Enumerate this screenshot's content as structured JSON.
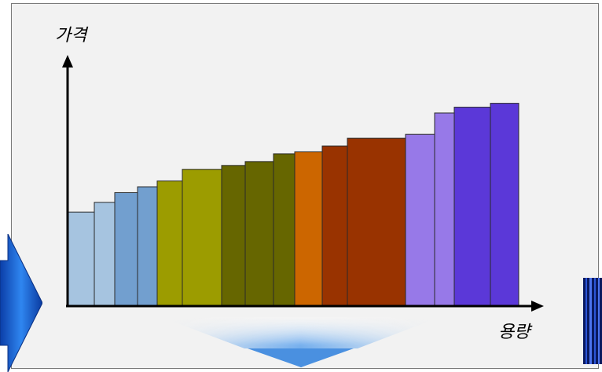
{
  "chart_data": {
    "type": "bar",
    "title": "",
    "xlabel": "용량",
    "ylabel": "가격",
    "ylim": [
      0,
      100
    ],
    "bars": [
      {
        "start": 0,
        "end": 34,
        "value": 48,
        "color": "#a6c4e0"
      },
      {
        "start": 34,
        "end": 60,
        "value": 53,
        "color": "#a6c4e0"
      },
      {
        "start": 60,
        "end": 89,
        "value": 58,
        "color": "#729fcf"
      },
      {
        "start": 89,
        "end": 114,
        "value": 61,
        "color": "#729fcf"
      },
      {
        "start": 114,
        "end": 146,
        "value": 64,
        "color": "#9c9c00"
      },
      {
        "start": 146,
        "end": 196,
        "value": 70,
        "color": "#9c9c00"
      },
      {
        "start": 196,
        "end": 226,
        "value": 72,
        "color": "#666600"
      },
      {
        "start": 226,
        "end": 262,
        "value": 74,
        "color": "#666600"
      },
      {
        "start": 262,
        "end": 289,
        "value": 78,
        "color": "#666600"
      },
      {
        "start": 289,
        "end": 324,
        "value": 79,
        "color": "#cc6600"
      },
      {
        "start": 324,
        "end": 356,
        "value": 82,
        "color": "#993300"
      },
      {
        "start": 356,
        "end": 430,
        "value": 86,
        "color": "#993300"
      },
      {
        "start": 430,
        "end": 467,
        "value": 88,
        "color": "#9779e8"
      },
      {
        "start": 467,
        "end": 492,
        "value": 99,
        "color": "#9779e8"
      },
      {
        "start": 492,
        "end": 538,
        "value": 102,
        "color": "#5b38d8"
      },
      {
        "start": 538,
        "end": 574,
        "value": 104,
        "color": "#5b38d8"
      }
    ]
  }
}
